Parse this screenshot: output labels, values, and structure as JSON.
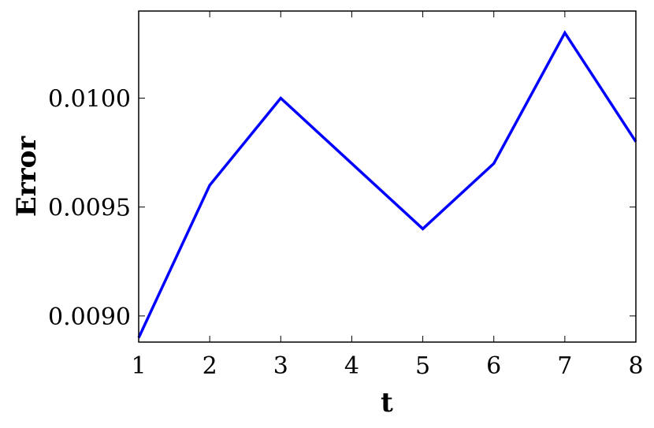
{
  "chart_data": {
    "type": "line",
    "title": "",
    "xlabel": "t",
    "ylabel": "Error",
    "x": [
      1,
      2,
      3,
      4,
      5,
      6,
      7,
      8
    ],
    "series": [
      {
        "color": "#0000ff",
        "values": [
          0.0089,
          0.0096,
          0.01,
          0.0097,
          0.0094,
          0.0097,
          0.0103,
          0.0098
        ]
      }
    ],
    "xlim": [
      1,
      8
    ],
    "ylim": [
      0.00888,
      0.0104
    ],
    "xticks": [
      "1",
      "2",
      "3",
      "4",
      "5",
      "6",
      "7",
      "8"
    ],
    "yticks": [
      "0.0090",
      "0.0095",
      "0.0100"
    ],
    "ytick_values": [
      0.009,
      0.0095,
      0.01
    ],
    "grid": false,
    "legend": "none"
  }
}
